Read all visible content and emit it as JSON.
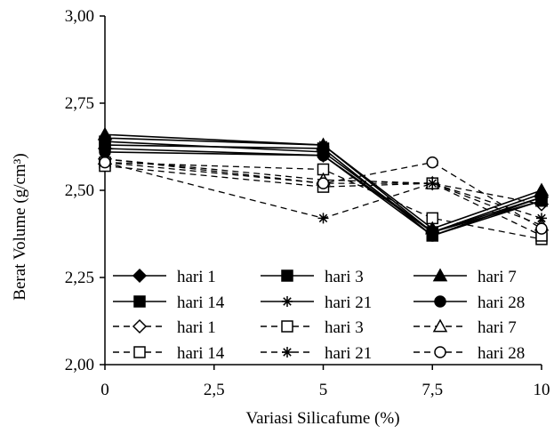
{
  "chart_data": {
    "type": "line",
    "xlabel": "Variasi Silicafume (%)",
    "ylabel": "Berat Volume (g/cm³)",
    "x": [
      0,
      5,
      7.5,
      10
    ],
    "xticks": [
      "0",
      "2,5",
      "5",
      "7,5",
      "10"
    ],
    "xtick_values": [
      0,
      2.5,
      5,
      7.5,
      10
    ],
    "yticks": [
      "2,00",
      "2,25",
      "2,50",
      "2,75",
      "3,00"
    ],
    "ytick_values": [
      2.0,
      2.25,
      2.5,
      2.75,
      3.0
    ],
    "xlim": [
      0,
      10
    ],
    "ylim": [
      2.0,
      3.0
    ],
    "grid": false,
    "legend_position": "bottom-inside",
    "series": [
      {
        "name": "hari 1",
        "style": "solid",
        "marker": "diamond",
        "filled": true,
        "values": [
          2.62,
          2.6,
          2.38,
          2.48
        ]
      },
      {
        "name": "hari 3",
        "style": "solid",
        "marker": "square",
        "filled": true,
        "values": [
          2.64,
          2.61,
          2.38,
          2.47
        ]
      },
      {
        "name": "hari 7",
        "style": "solid",
        "marker": "triangle",
        "filled": true,
        "values": [
          2.66,
          2.63,
          2.39,
          2.5
        ]
      },
      {
        "name": "hari 14",
        "style": "solid",
        "marker": "square",
        "filled": true,
        "values": [
          2.63,
          2.62,
          2.37,
          2.47
        ]
      },
      {
        "name": "hari 21",
        "style": "solid",
        "marker": "asterisk",
        "filled": true,
        "values": [
          2.65,
          2.63,
          2.38,
          2.49
        ]
      },
      {
        "name": "hari 28",
        "style": "solid",
        "marker": "circle",
        "filled": true,
        "values": [
          2.61,
          2.6,
          2.37,
          2.48
        ]
      },
      {
        "name": "hari 1",
        "style": "dashed",
        "marker": "diamond",
        "filled": false,
        "values": [
          2.59,
          2.52,
          2.52,
          2.46
        ]
      },
      {
        "name": "hari 3",
        "style": "dashed",
        "marker": "square",
        "filled": false,
        "values": [
          2.58,
          2.56,
          2.42,
          2.36
        ]
      },
      {
        "name": "hari 7",
        "style": "dashed",
        "marker": "triangle",
        "filled": false,
        "values": [
          2.59,
          2.53,
          2.52,
          2.4
        ]
      },
      {
        "name": "hari 14",
        "style": "dashed",
        "marker": "square",
        "filled": false,
        "values": [
          2.57,
          2.51,
          2.52,
          2.37
        ]
      },
      {
        "name": "hari 21",
        "style": "dashed",
        "marker": "asterisk",
        "filled": false,
        "values": [
          2.58,
          2.42,
          2.52,
          2.42
        ]
      },
      {
        "name": "hari 28",
        "style": "dashed",
        "marker": "circle",
        "filled": false,
        "values": [
          2.58,
          2.52,
          2.58,
          2.39
        ]
      }
    ]
  }
}
